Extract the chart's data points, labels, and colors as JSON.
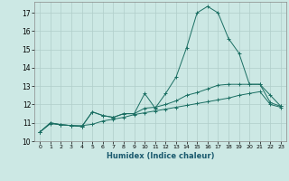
{
  "xlabel": "Humidex (Indice chaleur)",
  "background_color": "#cce8e4",
  "grid_color": "#b0ceca",
  "line_color": "#1a6e62",
  "ylim": [
    10.0,
    17.6
  ],
  "xlim": [
    -0.5,
    23.5
  ],
  "yticks": [
    10,
    11,
    12,
    13,
    14,
    15,
    16,
    17
  ],
  "xticks": [
    0,
    1,
    2,
    3,
    4,
    5,
    6,
    7,
    8,
    9,
    10,
    11,
    12,
    13,
    14,
    15,
    16,
    17,
    18,
    19,
    20,
    21,
    22,
    23
  ],
  "x_all": [
    0,
    1,
    2,
    3,
    4,
    5,
    6,
    7,
    8,
    9,
    10,
    11,
    12,
    13,
    14,
    15,
    16,
    17,
    18,
    19,
    20,
    21,
    22,
    23
  ],
  "y_peak": [
    10.5,
    11.0,
    10.9,
    10.85,
    10.8,
    11.6,
    11.4,
    11.3,
    11.5,
    11.5,
    12.6,
    11.8,
    12.6,
    13.5,
    15.1,
    17.0,
    17.35,
    17.0,
    15.6,
    14.8,
    13.1,
    13.1,
    12.5,
    11.9
  ],
  "y_mid": [
    10.5,
    11.0,
    10.9,
    10.85,
    10.8,
    11.6,
    11.4,
    11.3,
    11.5,
    11.5,
    11.8,
    11.85,
    12.0,
    12.2,
    12.5,
    12.65,
    12.85,
    13.05,
    13.1,
    13.1,
    13.1,
    13.1,
    12.1,
    11.9
  ],
  "y_low": [
    10.5,
    10.95,
    10.9,
    10.85,
    10.85,
    10.92,
    11.1,
    11.2,
    11.3,
    11.45,
    11.55,
    11.65,
    11.75,
    11.85,
    11.95,
    12.05,
    12.15,
    12.25,
    12.35,
    12.5,
    12.6,
    12.7,
    12.0,
    11.85
  ]
}
